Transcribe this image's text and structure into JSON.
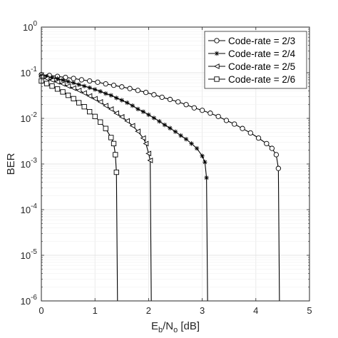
{
  "chart_data": {
    "type": "line",
    "xlabel": {
      "base": "E",
      "sub1": "b",
      "mid": "/N",
      "sub2": "o",
      "tail": " [dB]"
    },
    "ylabel": "BER",
    "xlim": [
      0,
      5
    ],
    "ylim": [
      1e-06,
      1
    ],
    "yscale": "log",
    "grid": true,
    "legend_position": "top-right",
    "x_ticks": [
      "0",
      "1",
      "2",
      "3",
      "4",
      "5"
    ],
    "y_ticks": [
      {
        "base": "10",
        "exp": "0"
      },
      {
        "base": "10",
        "exp": "-1"
      },
      {
        "base": "10",
        "exp": "-2"
      },
      {
        "base": "10",
        "exp": "-3"
      },
      {
        "base": "10",
        "exp": "-4"
      },
      {
        "base": "10",
        "exp": "-5"
      },
      {
        "base": "10",
        "exp": "-6"
      }
    ],
    "series": [
      {
        "name": "Code-rate = 2/3",
        "marker": "circle",
        "x": [
          0,
          0.15,
          0.3,
          0.45,
          0.6,
          0.75,
          0.9,
          1.05,
          1.2,
          1.35,
          1.5,
          1.65,
          1.8,
          1.95,
          2.1,
          2.25,
          2.4,
          2.55,
          2.7,
          2.85,
          3.0,
          3.15,
          3.3,
          3.45,
          3.6,
          3.75,
          3.9,
          4.05,
          4.2,
          4.3,
          4.38,
          4.42,
          4.44
        ],
        "y": [
          0.091,
          0.087,
          0.083,
          0.079,
          0.075,
          0.07,
          0.066,
          0.062,
          0.057,
          0.053,
          0.049,
          0.045,
          0.041,
          0.037,
          0.033,
          0.029,
          0.026,
          0.023,
          0.02,
          0.017,
          0.015,
          0.013,
          0.011,
          0.009,
          0.0075,
          0.006,
          0.0048,
          0.0037,
          0.0028,
          0.0022,
          0.0016,
          0.0008,
          1e-06
        ]
      },
      {
        "name": "Code-rate = 2/4",
        "marker": "star",
        "x": [
          0,
          0.1,
          0.2,
          0.3,
          0.4,
          0.5,
          0.6,
          0.7,
          0.8,
          0.9,
          1.0,
          1.1,
          1.2,
          1.3,
          1.4,
          1.5,
          1.6,
          1.7,
          1.8,
          1.9,
          2.0,
          2.1,
          2.2,
          2.3,
          2.4,
          2.5,
          2.6,
          2.7,
          2.8,
          2.9,
          3.0,
          3.05,
          3.08,
          3.1
        ],
        "y": [
          0.088,
          0.083,
          0.078,
          0.074,
          0.069,
          0.064,
          0.06,
          0.055,
          0.051,
          0.047,
          0.043,
          0.039,
          0.035,
          0.032,
          0.028,
          0.025,
          0.022,
          0.019,
          0.016,
          0.014,
          0.012,
          0.0102,
          0.0086,
          0.0072,
          0.0061,
          0.0051,
          0.0042,
          0.0035,
          0.0028,
          0.0022,
          0.0015,
          0.0011,
          0.0005,
          1e-06
        ]
      },
      {
        "name": "Code-rate = 2/5",
        "marker": "triangle-left",
        "x": [
          0,
          0.1,
          0.2,
          0.3,
          0.4,
          0.5,
          0.6,
          0.7,
          0.8,
          0.9,
          1.0,
          1.1,
          1.2,
          1.3,
          1.4,
          1.5,
          1.6,
          1.7,
          1.8,
          1.9,
          1.95,
          2.0,
          2.03,
          2.05
        ],
        "y": [
          0.081,
          0.075,
          0.069,
          0.063,
          0.057,
          0.051,
          0.046,
          0.041,
          0.036,
          0.031,
          0.027,
          0.023,
          0.019,
          0.016,
          0.013,
          0.0108,
          0.0088,
          0.0069,
          0.0052,
          0.0037,
          0.0028,
          0.0017,
          0.0012,
          1e-06
        ]
      },
      {
        "name": "Code-rate = 2/6",
        "marker": "square",
        "x": [
          0,
          0.1,
          0.2,
          0.3,
          0.4,
          0.5,
          0.6,
          0.7,
          0.8,
          0.9,
          1.0,
          1.1,
          1.2,
          1.3,
          1.35,
          1.38,
          1.4,
          1.42
        ],
        "y": [
          0.066,
          0.058,
          0.051,
          0.044,
          0.038,
          0.032,
          0.027,
          0.022,
          0.018,
          0.014,
          0.011,
          0.0083,
          0.006,
          0.0038,
          0.0028,
          0.0016,
          0.00066,
          1e-06
        ]
      }
    ]
  }
}
